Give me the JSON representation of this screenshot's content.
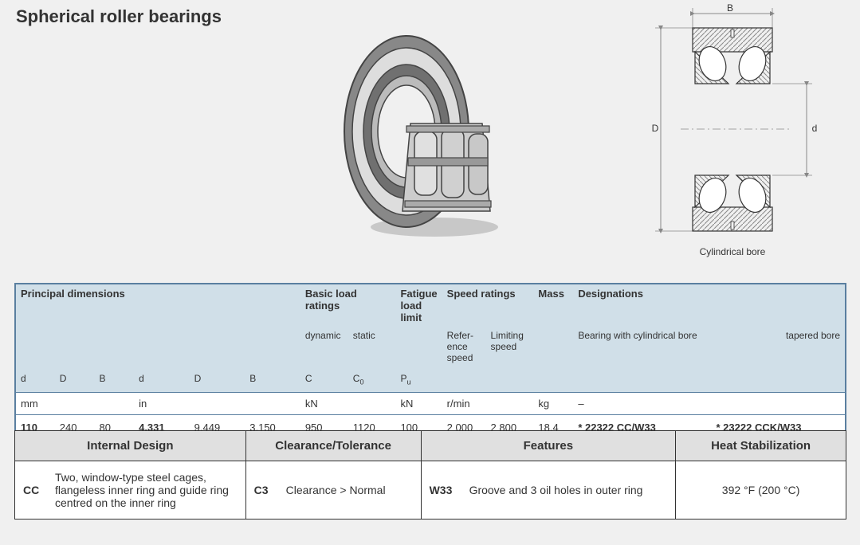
{
  "title": "Spherical roller bearings",
  "diagram": {
    "caption": "Cylindrical bore",
    "labels": {
      "B": "B",
      "D": "D",
      "d": "d"
    },
    "colors": {
      "hatch": "#888888",
      "outline": "#333333",
      "dim_line": "#888888",
      "bg": "#f0f0f0"
    }
  },
  "bearing_render": {
    "colors": {
      "ring_light": "#d8d8d8",
      "ring_mid": "#a0a0a0",
      "ring_dark": "#505050",
      "shadow": "#c0c0c0"
    }
  },
  "spec_table": {
    "header_bg": "#d0dfe8",
    "border_color": "#5a7fa0",
    "groups": {
      "principal": "Principal dimensions",
      "basic_load": "Basic load ratings",
      "fatigue": "Fatigue load limit",
      "speed": "Speed ratings",
      "mass": "Mass",
      "designations": "Designations"
    },
    "sub_labels": {
      "dynamic": "dynamic",
      "static": "static",
      "reference": "Refer-ence speed",
      "limiting": "Limiting speed",
      "bearing_cyl": "Bearing with cylindrical bore",
      "tapered": "tapered bore"
    },
    "cols": [
      "d",
      "D",
      "B",
      "d",
      "D",
      "B",
      "C",
      "C",
      "P",
      "",
      "",
      "",
      "",
      ""
    ],
    "col_sub": [
      "",
      "",
      "",
      "",
      "",
      "",
      "",
      "0",
      "u",
      "",
      "",
      "",
      "",
      ""
    ],
    "units": [
      "mm",
      "",
      "",
      "in",
      "",
      "",
      "kN",
      "",
      "kN",
      "r/min",
      "",
      "kg",
      "–",
      ""
    ],
    "data": [
      "110",
      "240",
      "80",
      "4.331",
      "9.449",
      "3.150",
      "950",
      "1120",
      "100",
      "2 000",
      "2 800",
      "18.4",
      "* 22322 CC/W33",
      "* 23222 CCK/W33"
    ],
    "bold_cols": [
      0,
      3,
      12,
      13
    ]
  },
  "detail_table": {
    "header_bg": "#e0e0e0",
    "headers": [
      "Internal Design",
      "Clearance/Tolerance",
      "Features",
      "Heat Stabilization"
    ],
    "rows": [
      {
        "internal_code": "CC",
        "internal_text": "Two, window-type steel cages, flangeless inner ring and guide ring centred on the inner ring",
        "clearance_code": "C3",
        "clearance_text": "Clearance > Normal",
        "features_code": "W33",
        "features_text": "Groove and 3 oil holes in outer ring",
        "heat": "392 °F (200 °C)"
      }
    ]
  }
}
